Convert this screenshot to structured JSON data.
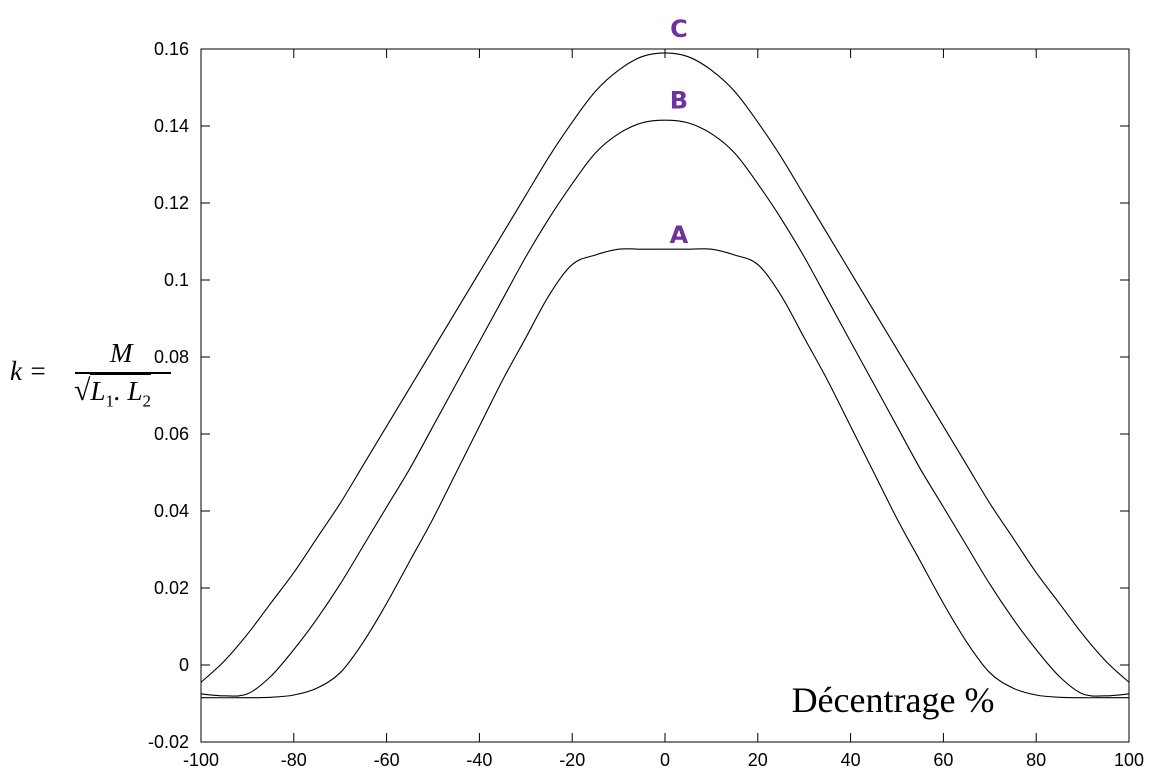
{
  "chart_data": {
    "type": "line",
    "title": "",
    "xlabel": "Décentrage %",
    "ylabel": {
      "lhs": "k =",
      "numerator": "M",
      "denominator": "L1. L2"
    },
    "xlim": [
      -100,
      100
    ],
    "ylim": [
      -0.02,
      0.16
    ],
    "xticks": [
      -100,
      -80,
      -60,
      -40,
      -20,
      0,
      20,
      40,
      60,
      80,
      100
    ],
    "yticks": [
      {
        "value": -0.02,
        "label": "-0.02"
      },
      {
        "value": 0,
        "label": "0"
      },
      {
        "value": 0.02,
        "label": "0.02"
      },
      {
        "value": 0.04,
        "label": "0.04"
      },
      {
        "value": 0.06,
        "label": "0.06"
      },
      {
        "value": 0.08,
        "label": "0.08"
      },
      {
        "value": 0.1,
        "label": "0.1"
      },
      {
        "value": 0.12,
        "label": "0.12"
      },
      {
        "value": 0.14,
        "label": "0.14"
      },
      {
        "value": 0.16,
        "label": "0.16"
      }
    ],
    "grid": false,
    "line_color": "#000000",
    "label_color": "#7030a0",
    "series": [
      {
        "name": "A",
        "label_at": [
          3,
          0.108
        ],
        "x": [
          -100,
          -90,
          -85,
          -80,
          -75,
          -70,
          -65,
          -60,
          -55,
          -50,
          -45,
          -40,
          -35,
          -30,
          -25,
          -20,
          -15,
          -10,
          -5,
          0,
          5,
          10,
          15,
          20,
          25,
          30,
          35,
          40,
          45,
          50,
          55,
          60,
          65,
          70,
          75,
          80,
          85,
          90,
          95,
          100
        ],
        "y": [
          -0.0085,
          -0.0085,
          -0.0084,
          -0.0078,
          -0.006,
          -0.002,
          0.006,
          0.016,
          0.027,
          0.038,
          0.05,
          0.062,
          0.074,
          0.085,
          0.096,
          0.104,
          0.1065,
          0.108,
          0.108,
          0.108,
          0.108,
          0.108,
          0.1065,
          0.104,
          0.096,
          0.085,
          0.074,
          0.062,
          0.05,
          0.038,
          0.027,
          0.016,
          0.006,
          -0.002,
          -0.006,
          -0.0078,
          -0.0084,
          -0.0085,
          -0.0085,
          -0.0085
        ]
      },
      {
        "name": "B",
        "label_at": [
          3,
          0.143
        ],
        "x": [
          -100,
          -95,
          -90,
          -85,
          -80,
          -75,
          -70,
          -65,
          -60,
          -55,
          -50,
          -45,
          -40,
          -35,
          -30,
          -25,
          -20,
          -15,
          -10,
          -5,
          0,
          5,
          10,
          15,
          20,
          25,
          30,
          35,
          40,
          45,
          50,
          55,
          60,
          65,
          70,
          75,
          80,
          85,
          90,
          95,
          100
        ],
        "y": [
          -0.0075,
          -0.008,
          -0.0075,
          -0.003,
          0.004,
          0.012,
          0.021,
          0.031,
          0.041,
          0.051,
          0.062,
          0.073,
          0.084,
          0.095,
          0.106,
          0.116,
          0.125,
          0.133,
          0.138,
          0.1408,
          0.1415,
          0.1408,
          0.138,
          0.133,
          0.125,
          0.116,
          0.106,
          0.095,
          0.084,
          0.073,
          0.062,
          0.051,
          0.041,
          0.031,
          0.021,
          0.012,
          0.004,
          -0.003,
          -0.0075,
          -0.008,
          -0.0075
        ]
      },
      {
        "name": "C",
        "label_at": [
          3,
          0.1615
        ],
        "x": [
          -100,
          -95,
          -90,
          -85,
          -80,
          -75,
          -70,
          -65,
          -60,
          -55,
          -50,
          -45,
          -40,
          -35,
          -30,
          -25,
          -20,
          -15,
          -10,
          -5,
          0,
          5,
          10,
          15,
          20,
          25,
          30,
          35,
          40,
          45,
          50,
          55,
          60,
          65,
          70,
          75,
          80,
          85,
          90,
          95,
          100
        ],
        "y": [
          -0.0045,
          0.001,
          0.008,
          0.016,
          0.024,
          0.033,
          0.042,
          0.052,
          0.062,
          0.072,
          0.082,
          0.092,
          0.102,
          0.112,
          0.122,
          0.132,
          0.141,
          0.149,
          0.1545,
          0.158,
          0.159,
          0.158,
          0.1545,
          0.149,
          0.141,
          0.132,
          0.122,
          0.112,
          0.102,
          0.092,
          0.082,
          0.072,
          0.062,
          0.052,
          0.042,
          0.033,
          0.024,
          0.016,
          0.008,
          0.001,
          -0.0045
        ]
      }
    ]
  }
}
